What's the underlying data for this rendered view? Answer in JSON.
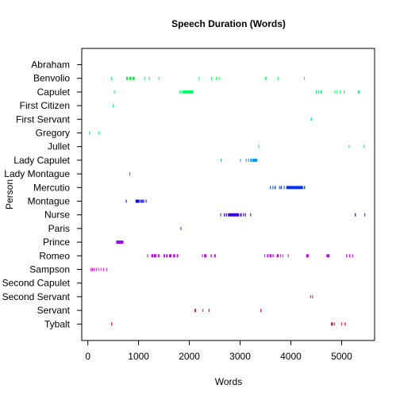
{
  "chart_data": {
    "type": "scatter",
    "title": "Speech Duration (Words)",
    "xlabel": "Words",
    "ylabel": "Person",
    "xlim": [
      -120,
      5650
    ],
    "xticks": [
      0,
      1000,
      2000,
      3000,
      4000,
      5000
    ],
    "grid": false,
    "legend": "none",
    "categories": [
      "Abraham",
      "Benvolio",
      "Capulet",
      "First Citizen",
      "First Servant",
      "Gregory",
      "Jullet",
      "Lady Capulet",
      "Lady Montague",
      "Mercutio",
      "Montague",
      "Nurse",
      "Paris",
      "Prince",
      "Romeo",
      "Sampson",
      "Second Capulet",
      "Second Servant",
      "Servant",
      "Tybalt"
    ],
    "series": [
      {
        "category": "Abraham",
        "color": "#ff0000",
        "segments": []
      },
      {
        "category": "Benvolio",
        "color": "#00ff44",
        "segments": [
          [
            460,
            470
          ],
          [
            755,
            790
          ],
          [
            815,
            860
          ],
          [
            875,
            925
          ],
          [
            1110,
            1120
          ],
          [
            1200,
            1210
          ],
          [
            1390,
            1400
          ],
          [
            2185,
            2200
          ],
          [
            2430,
            2440
          ],
          [
            2525,
            2545
          ],
          [
            2580,
            2590
          ],
          [
            3495,
            3520
          ],
          [
            3740,
            3745
          ],
          [
            4260,
            4265
          ]
        ]
      },
      {
        "category": "Capulet",
        "color": "#00ff66",
        "segments": [
          [
            515,
            520
          ],
          [
            1800,
            1810
          ],
          [
            1840,
            1850
          ],
          [
            1870,
            2075
          ],
          [
            4490,
            4510
          ],
          [
            4540,
            4560
          ],
          [
            4585,
            4610
          ],
          [
            4860,
            4875
          ],
          [
            4905,
            4920
          ],
          [
            4965,
            4980
          ],
          [
            5040,
            5060
          ],
          [
            5320,
            5350
          ]
        ]
      },
      {
        "category": "First Citizen",
        "color": "#00ff99",
        "segments": [
          [
            490,
            500
          ]
        ]
      },
      {
        "category": "First Servant",
        "color": "#00ffcc",
        "segments": [
          [
            4390,
            4415
          ]
        ]
      },
      {
        "category": "Gregory",
        "color": "#00ffee",
        "segments": [
          [
            20,
            25
          ],
          [
            210,
            215
          ]
        ]
      },
      {
        "category": "Jullet",
        "color": "#00ccff",
        "segments": [
          [
            3360,
            3370
          ],
          [
            5140,
            5150
          ],
          [
            5440,
            5450
          ]
        ]
      },
      {
        "category": "Lady Capulet",
        "color": "#0099ff",
        "segments": [
          [
            2620,
            2625
          ],
          [
            3000,
            3005
          ],
          [
            3110,
            3120
          ],
          [
            3160,
            3175
          ],
          [
            3200,
            3230
          ],
          [
            3240,
            3340
          ]
        ]
      },
      {
        "category": "Lady Montague",
        "color": "#0066ff",
        "segments": [
          [
            820,
            825
          ]
        ]
      },
      {
        "category": "Mercutio",
        "color": "#0033ff",
        "segments": [
          [
            3590,
            3600
          ],
          [
            3640,
            3650
          ],
          [
            3680,
            3700
          ],
          [
            3770,
            3780
          ],
          [
            3800,
            3820
          ],
          [
            3860,
            3870
          ],
          [
            3910,
            4240
          ],
          [
            4260,
            4280
          ]
        ]
      },
      {
        "category": "Montague",
        "color": "#0000ff",
        "segments": [
          [
            750,
            760
          ],
          [
            940,
            1010
          ],
          [
            1020,
            1030
          ],
          [
            1050,
            1080
          ],
          [
            1090,
            1110
          ],
          [
            1140,
            1150
          ]
        ]
      },
      {
        "category": "Nurse",
        "color": "#3300ff",
        "segments": [
          [
            2610,
            2620
          ],
          [
            2680,
            2700
          ],
          [
            2720,
            2740
          ],
          [
            2760,
            2980
          ],
          [
            3000,
            3030
          ],
          [
            3060,
            3080
          ],
          [
            3100,
            3110
          ],
          [
            3200,
            3210
          ],
          [
            5260,
            5280
          ],
          [
            5450,
            5460
          ]
        ]
      },
      {
        "category": "Paris",
        "color": "#6600ff",
        "segments": [
          [
            1825,
            1840
          ]
        ]
      },
      {
        "category": "Prince",
        "color": "#9900ff",
        "segments": [
          [
            560,
            700
          ]
        ]
      },
      {
        "category": "Romeo",
        "color": "#cc00ff",
        "segments": [
          [
            1170,
            1180
          ],
          [
            1250,
            1290
          ],
          [
            1300,
            1350
          ],
          [
            1380,
            1410
          ],
          [
            1490,
            1520
          ],
          [
            1540,
            1570
          ],
          [
            1600,
            1650
          ],
          [
            1680,
            1720
          ],
          [
            1750,
            1780
          ],
          [
            2250,
            2260
          ],
          [
            2290,
            2340
          ],
          [
            2420,
            2440
          ],
          [
            2490,
            2520
          ],
          [
            3480,
            3490
          ],
          [
            3530,
            3560
          ],
          [
            3580,
            3620
          ],
          [
            3640,
            3660
          ],
          [
            3720,
            3760
          ],
          [
            3790,
            3800
          ],
          [
            3830,
            3840
          ],
          [
            3940,
            3950
          ],
          [
            4300,
            4350
          ],
          [
            4700,
            4760
          ],
          [
            5090,
            5110
          ],
          [
            5150,
            5170
          ],
          [
            5210,
            5220
          ]
        ]
      },
      {
        "category": "Sampson",
        "color": "#ff00ff",
        "segments": [
          [
            50,
            60
          ],
          [
            80,
            100
          ],
          [
            120,
            140
          ],
          [
            160,
            170
          ],
          [
            200,
            210
          ],
          [
            250,
            260
          ],
          [
            300,
            310
          ],
          [
            360,
            370
          ]
        ]
      },
      {
        "category": "Second Capulet",
        "color": "#ff00cc",
        "segments": []
      },
      {
        "category": "Second Servant",
        "color": "#ff0099",
        "segments": [
          [
            4380,
            4385
          ],
          [
            4420,
            4425
          ]
        ]
      },
      {
        "category": "Servant",
        "color": "#ff0066",
        "segments": [
          [
            2100,
            2130
          ],
          [
            2260,
            2270
          ],
          [
            2380,
            2400
          ],
          [
            3400,
            3420
          ]
        ]
      },
      {
        "category": "Tybalt",
        "color": "#ff0033",
        "segments": [
          [
            460,
            480
          ],
          [
            4790,
            4830
          ],
          [
            4850,
            4860
          ],
          [
            4990,
            5000
          ],
          [
            5060,
            5080
          ]
        ]
      }
    ]
  }
}
